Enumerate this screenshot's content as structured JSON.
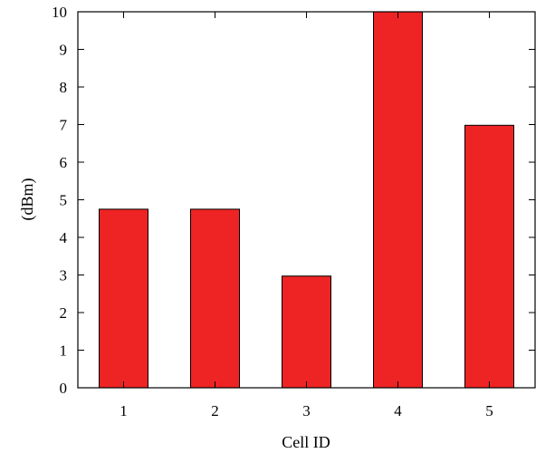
{
  "chart_data": {
    "type": "bar",
    "title": "",
    "xlabel": "Cell ID",
    "ylabel": "(dBm)",
    "categories": [
      "1",
      "2",
      "3",
      "4",
      "5"
    ],
    "values": [
      4.75,
      4.75,
      2.97,
      10,
      6.98
    ],
    "ylim": [
      0,
      10
    ],
    "yticks": [
      "0",
      "1",
      "2",
      "3",
      "4",
      "5",
      "6",
      "7",
      "8",
      "9",
      "10"
    ],
    "bar_color": "#ee2424",
    "grid": false
  }
}
